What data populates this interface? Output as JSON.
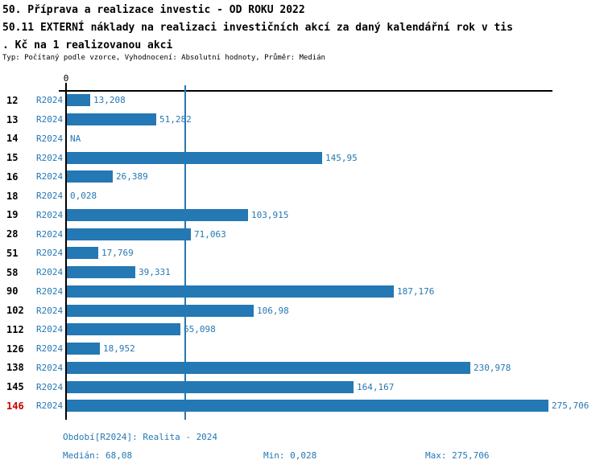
{
  "header": {
    "line1": "50. Příprava a realizace investic - OD ROKU 2022",
    "line2": "50.11 EXTERNÍ náklady na realizaci investičních akcí za daný kalendářní rok v tis",
    "line3": ". Kč na 1 realizovanou akci",
    "subtitle": "Typ: Počítaný podle vzorce, Vyhodnocení: Absolutní hodnoty, Průměr: Medián"
  },
  "chart_data": {
    "type": "bar",
    "orientation": "horizontal",
    "axis_zero_label": "0",
    "xlim": [
      0,
      278
    ],
    "median_value": 68.08,
    "median_line": true,
    "series_label": "R2024",
    "rows": [
      {
        "id": "12",
        "period": "R2024",
        "value": 13.208,
        "label": "13,208",
        "highlight": false
      },
      {
        "id": "13",
        "period": "R2024",
        "value": 51.282,
        "label": "51,282",
        "highlight": false
      },
      {
        "id": "14",
        "period": "R2024",
        "value": null,
        "label": "NA",
        "highlight": false
      },
      {
        "id": "15",
        "period": "R2024",
        "value": 145.95,
        "label": "145,95",
        "highlight": false
      },
      {
        "id": "16",
        "period": "R2024",
        "value": 26.389,
        "label": "26,389",
        "highlight": false
      },
      {
        "id": "18",
        "period": "R2024",
        "value": 0.028,
        "label": "0,028",
        "highlight": false
      },
      {
        "id": "19",
        "period": "R2024",
        "value": 103.915,
        "label": "103,915",
        "highlight": false
      },
      {
        "id": "28",
        "period": "R2024",
        "value": 71.063,
        "label": "71,063",
        "highlight": false
      },
      {
        "id": "51",
        "period": "R2024",
        "value": 17.769,
        "label": "17,769",
        "highlight": false
      },
      {
        "id": "58",
        "period": "R2024",
        "value": 39.331,
        "label": "39,331",
        "highlight": false
      },
      {
        "id": "90",
        "period": "R2024",
        "value": 187.176,
        "label": "187,176",
        "highlight": false
      },
      {
        "id": "102",
        "period": "R2024",
        "value": 106.98,
        "label": "106,98",
        "highlight": false
      },
      {
        "id": "112",
        "period": "R2024",
        "value": 65.098,
        "label": "65,098",
        "highlight": false
      },
      {
        "id": "126",
        "period": "R2024",
        "value": 18.952,
        "label": "18,952",
        "highlight": false
      },
      {
        "id": "138",
        "period": "R2024",
        "value": 230.978,
        "label": "230,978",
        "highlight": false
      },
      {
        "id": "145",
        "period": "R2024",
        "value": 164.167,
        "label": "164,167",
        "highlight": false
      },
      {
        "id": "146",
        "period": "R2024",
        "value": 275.706,
        "label": "275,706",
        "highlight": true
      }
    ]
  },
  "footer": {
    "period_info": "Období[R2024]: Realita - 2024",
    "median": "Medián: 68,08",
    "min": "Min: 0,028",
    "max": "Max: 275,706"
  },
  "colors": {
    "bar": "#2478b4",
    "text_blue": "#2478b4",
    "highlight_red": "#cc0000",
    "axis": "#000000"
  }
}
